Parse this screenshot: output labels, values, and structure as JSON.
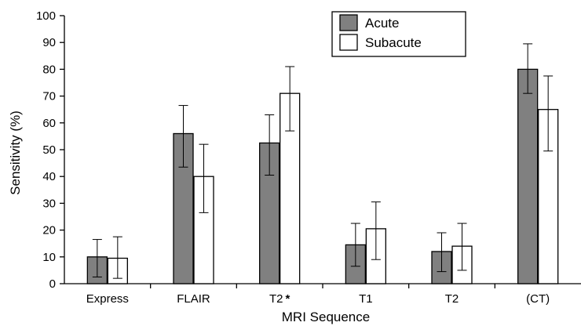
{
  "chart_data": {
    "type": "bar",
    "title": "",
    "xlabel": "MRI Sequence",
    "ylabel": "Sensitivity (%)",
    "ylim": [
      0,
      100
    ],
    "yticks": [
      0,
      10,
      20,
      30,
      40,
      50,
      60,
      70,
      80,
      90,
      100
    ],
    "categories": [
      "Express",
      "FLAIR",
      "T2",
      "T1",
      "T2",
      "(CT)"
    ],
    "category_marks": [
      "",
      "",
      "*",
      "",
      "",
      ""
    ],
    "series": [
      {
        "name": "Acute",
        "color": "#808080",
        "values": [
          10,
          56,
          52.5,
          14.5,
          12,
          80
        ],
        "error_low": [
          2.5,
          43.5,
          40.5,
          6.5,
          4.5,
          71
        ],
        "error_high": [
          16.5,
          66.5,
          63,
          22.5,
          19,
          89.5
        ]
      },
      {
        "name": "Subacute",
        "color": "#ffffff",
        "values": [
          9.5,
          40,
          71,
          20.5,
          14,
          65
        ],
        "error_low": [
          2,
          26.5,
          57,
          9,
          5,
          49.5
        ],
        "error_high": [
          17.5,
          52,
          81,
          30.5,
          22.5,
          77.5
        ]
      }
    ],
    "legend_position": "top-right",
    "grid": false
  }
}
